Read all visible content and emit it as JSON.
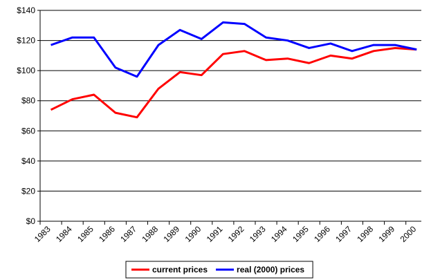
{
  "chart_data": {
    "type": "line",
    "categories": [
      "1983",
      "1984",
      "1985",
      "1986",
      "1987",
      "1988",
      "1989",
      "1990",
      "1991",
      "1992",
      "1993",
      "1994",
      "1995",
      "1996",
      "1997",
      "1998",
      "1999",
      "2000"
    ],
    "series": [
      {
        "name": "current prices",
        "color": "#ff0000",
        "values": [
          74,
          81,
          84,
          72,
          69,
          88,
          99,
          97,
          111,
          113,
          107,
          108,
          105,
          110,
          108,
          113,
          115,
          114
        ]
      },
      {
        "name": "real (2000) prices",
        "color": "#0000ff",
        "values": [
          117,
          122,
          122,
          102,
          96,
          117,
          127,
          121,
          132,
          131,
          122,
          120,
          115,
          118,
          113,
          117,
          117,
          114
        ]
      }
    ],
    "ylim": [
      0,
      140
    ],
    "yticks": [
      {
        "value": 0,
        "label": "$0"
      },
      {
        "value": 20,
        "label": "$20"
      },
      {
        "value": 40,
        "label": "$40"
      },
      {
        "value": 60,
        "label": "$60"
      },
      {
        "value": 80,
        "label": "$80"
      },
      {
        "value": 100,
        "label": "$100"
      },
      {
        "value": 120,
        "label": "$120"
      },
      {
        "value": 140,
        "label": "$140"
      }
    ],
    "grid": true
  }
}
